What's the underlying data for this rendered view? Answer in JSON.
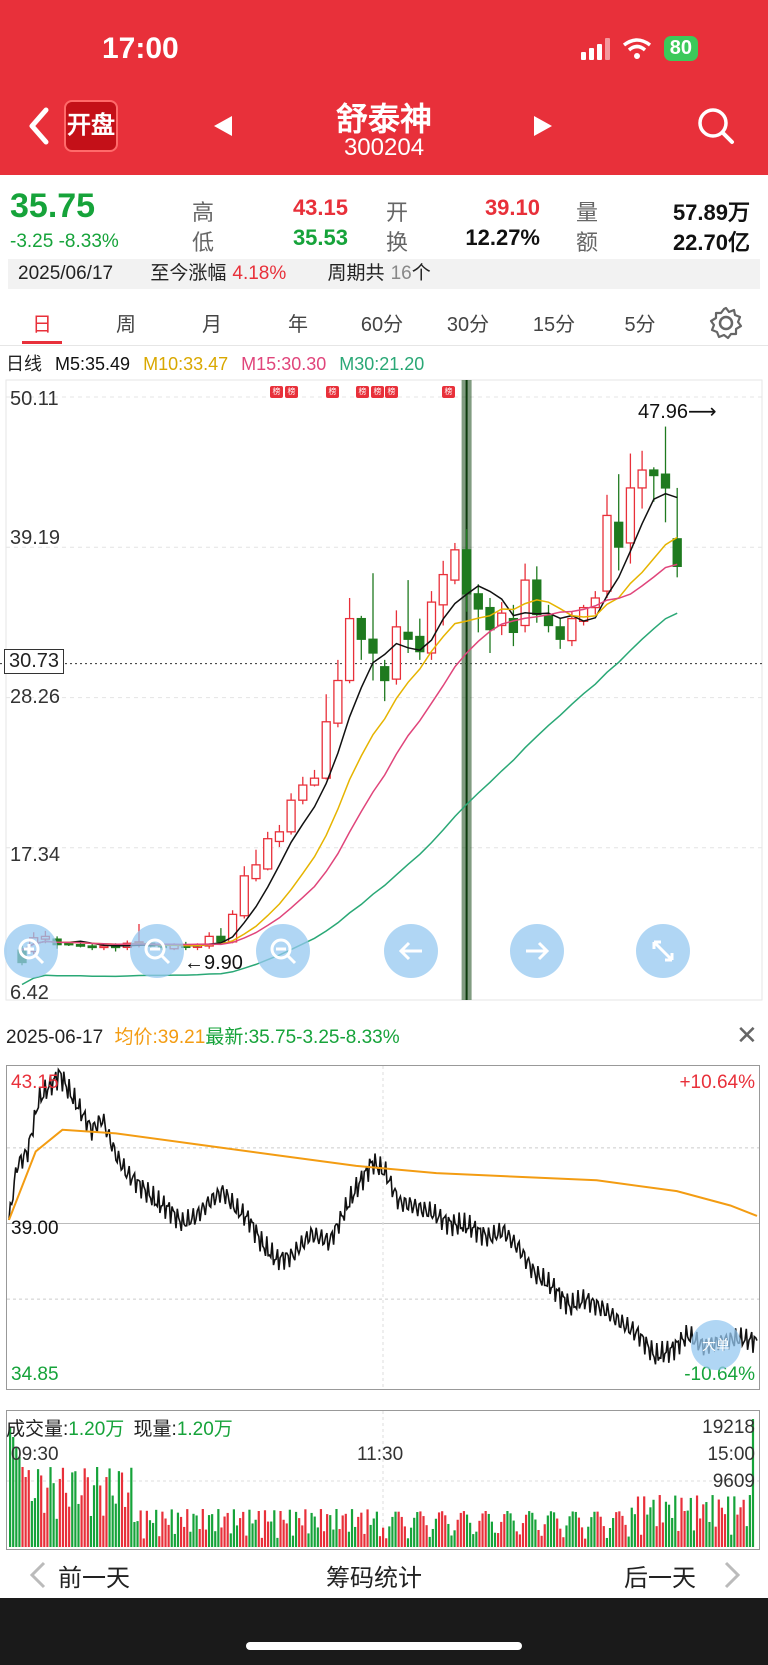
{
  "status": {
    "time": "17:00",
    "battery": "80"
  },
  "header": {
    "open_badge": "开盘",
    "title": "舒泰神",
    "code": "300204"
  },
  "quote": {
    "price": "35.75",
    "change": "-3.25 -8.33%",
    "high_label": "高",
    "high": "43.15",
    "low_label": "低",
    "low": "35.53",
    "open_label": "开",
    "open": "39.10",
    "turnover_label": "换",
    "turnover": "12.27%",
    "volume_label": "量",
    "volume": "57.89万",
    "amount_label": "额",
    "amount": "22.70亿"
  },
  "infobar": {
    "date": "2025/06/17",
    "since_label": "至今涨幅",
    "since_value": "4.18%",
    "period_label": "周期共",
    "period_value": "16",
    "period_unit": "个"
  },
  "tabs": [
    "日",
    "周",
    "月",
    "年",
    "60分",
    "30分",
    "15分",
    "5分"
  ],
  "ma_legend": {
    "label": "日线",
    "m5": "M5:35.49",
    "m10": "M10:33.47",
    "m15": "M15:30.30",
    "m30": "M30:21.20"
  },
  "colors": {
    "up": "#e8303a",
    "down": "#1f7a1f",
    "m5": "#111111",
    "m10": "#e6b400",
    "m15": "#e0457b",
    "m30": "#2aa876",
    "avg": "#f39c12"
  },
  "kline": {
    "y_labels": [
      "50.11",
      "39.19",
      "28.26",
      "17.34",
      "6.42"
    ],
    "current_price_box": "30.73",
    "low_annotation": "←9.90",
    "high_annotation": "47.96⟶",
    "badge_text": "榜",
    "candles": [
      [
        9.0,
        10.2,
        9.9,
        8.8,
        0
      ],
      [
        9.8,
        11.2,
        10.8,
        9.6,
        1
      ],
      [
        10.7,
        11.3,
        10.9,
        10.4,
        1
      ],
      [
        10.7,
        10.9,
        10.3,
        10.0,
        0
      ],
      [
        10.4,
        10.5,
        10.4,
        10.2,
        0
      ],
      [
        10.3,
        10.4,
        10.3,
        10.1,
        0
      ],
      [
        10.2,
        10.4,
        10.1,
        9.9,
        0
      ],
      [
        10.1,
        10.3,
        10.2,
        9.9,
        1
      ],
      [
        10.2,
        10.4,
        10.1,
        9.8,
        0
      ],
      [
        10.1,
        10.6,
        10.4,
        9.9,
        1
      ],
      [
        10.4,
        11.8,
        10.5,
        10.1,
        1
      ],
      [
        10.4,
        10.6,
        10.2,
        9.9,
        0
      ],
      [
        10.2,
        10.5,
        10.1,
        9.9,
        0
      ],
      [
        10.0,
        10.4,
        10.3,
        9.9,
        1
      ],
      [
        10.3,
        10.5,
        10.1,
        9.9,
        0
      ],
      [
        10.1,
        10.4,
        10.3,
        9.9,
        1
      ],
      [
        10.2,
        11.2,
        10.9,
        10.0,
        1
      ],
      [
        10.9,
        11.5,
        10.5,
        10.3,
        0
      ],
      [
        10.5,
        12.8,
        12.5,
        10.4,
        1
      ],
      [
        12.4,
        16.0,
        15.3,
        12.2,
        1
      ],
      [
        15.1,
        17.2,
        16.1,
        14.9,
        1
      ],
      [
        15.8,
        18.5,
        18.0,
        15.7,
        1
      ],
      [
        17.8,
        19.0,
        18.5,
        17.4,
        1
      ],
      [
        18.5,
        21.3,
        20.8,
        18.3,
        1
      ],
      [
        20.8,
        22.5,
        21.9,
        20.5,
        1
      ],
      [
        21.9,
        23.0,
        22.4,
        21.8,
        1
      ],
      [
        22.4,
        28.5,
        26.5,
        22.3,
        1
      ],
      [
        26.4,
        31.0,
        29.5,
        26.1,
        1
      ],
      [
        29.5,
        35.5,
        34.0,
        29.3,
        1
      ],
      [
        34.0,
        34.2,
        32.5,
        31.0,
        0
      ],
      [
        32.5,
        37.3,
        31.5,
        29.5,
        0
      ],
      [
        30.5,
        31.0,
        29.5,
        28.0,
        0
      ],
      [
        29.6,
        34.6,
        33.4,
        29.2,
        1
      ],
      [
        33.0,
        36.8,
        32.5,
        31.5,
        0
      ],
      [
        32.7,
        34.0,
        31.6,
        31.0,
        0
      ],
      [
        31.5,
        36.0,
        35.2,
        31.0,
        1
      ],
      [
        35.0,
        38.2,
        37.2,
        33.5,
        1
      ],
      [
        36.8,
        39.5,
        39.0,
        36.5,
        1
      ],
      [
        39.0,
        40.5,
        35.8,
        34.5,
        0
      ],
      [
        35.8,
        36.5,
        34.7,
        33.0,
        0
      ],
      [
        34.8,
        35.5,
        33.2,
        31.5,
        0
      ],
      [
        33.5,
        35.2,
        34.4,
        32.8,
        1
      ],
      [
        34.0,
        35.0,
        33.0,
        32.0,
        0
      ],
      [
        33.5,
        38.0,
        36.8,
        33.0,
        1
      ],
      [
        36.8,
        37.8,
        34.3,
        33.7,
        0
      ],
      [
        34.2,
        35.0,
        33.5,
        33.0,
        0
      ],
      [
        33.4,
        34.0,
        32.5,
        31.8,
        0
      ],
      [
        32.4,
        34.5,
        34.0,
        32.0,
        1
      ],
      [
        33.8,
        35.0,
        34.8,
        33.5,
        1
      ],
      [
        34.8,
        36.0,
        35.5,
        34.3,
        1
      ],
      [
        36.0,
        43.0,
        41.5,
        35.5,
        1
      ],
      [
        41.0,
        44.5,
        39.2,
        37.5,
        0
      ],
      [
        39.5,
        46.0,
        43.5,
        38.0,
        1
      ],
      [
        43.5,
        46.2,
        44.8,
        42.0,
        1
      ],
      [
        44.8,
        45.0,
        44.4,
        42.5,
        0
      ],
      [
        44.5,
        47.96,
        43.5,
        41.0,
        0
      ],
      [
        39.8,
        43.5,
        37.8,
        37.0,
        0
      ]
    ]
  },
  "intraday": {
    "date": "2025-06-17",
    "avg_label": "均价:",
    "avg_value": "39.21",
    "latest_label": "最新:",
    "latest_value": "35.75-3.25-8.33%",
    "high": "43.15",
    "mid": "39.00",
    "low": "34.85",
    "pct_up": "+10.64%",
    "pct_down": "-10.64%"
  },
  "volume": {
    "label": "成交量:",
    "value": "1.20万",
    "cur_label": "现量:",
    "cur_value": "1.20万",
    "max": "19218",
    "mid": "9609",
    "t_start": "09:30",
    "t_mid": "11:30",
    "t_end": "15:00"
  },
  "bottom_nav": {
    "prev": "前一天",
    "center": "筹码统计",
    "next": "后一天"
  },
  "overlay_buttons": [
    "zoom-in",
    "zoom-out",
    "arrow-left",
    "arrow-right",
    "fullscreen"
  ],
  "overlay_badge": "大单"
}
